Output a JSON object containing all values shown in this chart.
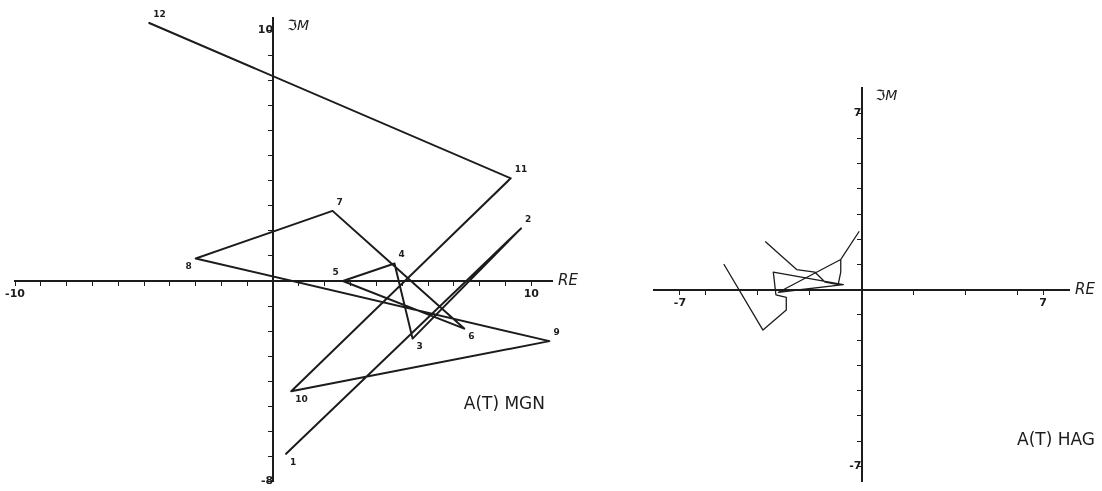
{
  "chart_data": [
    {
      "type": "line",
      "title": "A(T) MGN",
      "xlabel": "RE",
      "ylabel": "ℑM",
      "marker": "none",
      "line_style": "solid",
      "grid": false,
      "legend": false,
      "xlim": [
        -10,
        10.8
      ],
      "ylim": [
        -8,
        10.5
      ],
      "xticks": [
        -10,
        {
          "value": -9,
          "label": null
        },
        {
          "value": -8,
          "label": null
        },
        {
          "value": -7,
          "label": null
        },
        {
          "value": -6,
          "label": null
        },
        {
          "value": -5,
          "label": null
        },
        {
          "value": -4,
          "label": null
        },
        {
          "value": -3,
          "label": null
        },
        {
          "value": -2,
          "label": null
        },
        {
          "value": -1,
          "label": null
        },
        {
          "value": 1,
          "label": null
        },
        {
          "value": 2,
          "label": null
        },
        {
          "value": 3,
          "label": null
        },
        {
          "value": 4,
          "label": null
        },
        {
          "value": 5,
          "label": null
        },
        {
          "value": 6,
          "label": null
        },
        {
          "value": 7,
          "label": null
        },
        {
          "value": 8,
          "label": null
        },
        {
          "value": 9,
          "label": null
        },
        10
      ],
      "yticks": [
        -8,
        {
          "value": -7,
          "label": null
        },
        {
          "value": -6,
          "label": null
        },
        {
          "value": -5,
          "label": null
        },
        {
          "value": -4,
          "label": null
        },
        {
          "value": -3,
          "label": null
        },
        {
          "value": -2,
          "label": null
        },
        {
          "value": -1,
          "label": null
        },
        {
          "value": 1,
          "label": null
        },
        {
          "value": 2,
          "label": null
        },
        {
          "value": 3,
          "label": null
        },
        {
          "value": 4,
          "label": null
        },
        {
          "value": 5,
          "label": null
        },
        {
          "value": 6,
          "label": null
        },
        {
          "value": 7,
          "label": null
        },
        {
          "value": 8,
          "label": null
        },
        {
          "value": 9,
          "label": null
        },
        10
      ],
      "series": [
        {
          "color": "#1c1c1c",
          "x": [
            0.5,
            9.6,
            5.4,
            4.7,
            2.7,
            7.4,
            2.3,
            -3.0,
            10.7,
            0.7,
            9.2,
            -4.8
          ],
          "values": [
            -6.9,
            2.1,
            -2.3,
            0.7,
            0.0,
            -1.9,
            2.8,
            0.9,
            -2.4,
            -4.4,
            4.1,
            10.3
          ]
        }
      ],
      "annotations": [
        {
          "text": "1",
          "x": 0.5,
          "y": -6.9
        },
        {
          "text": "2",
          "x": 9.6,
          "y": 2.1
        },
        {
          "text": "3",
          "x": 5.4,
          "y": -2.3
        },
        {
          "text": "4",
          "x": 4.7,
          "y": 0.7
        },
        {
          "text": "5",
          "x": 2.7,
          "y": 0.0
        },
        {
          "text": "6",
          "x": 7.4,
          "y": -1.9
        },
        {
          "text": "7",
          "x": 2.3,
          "y": 2.8
        },
        {
          "text": "8",
          "x": -3.0,
          "y": 0.9
        },
        {
          "text": "9",
          "x": 10.7,
          "y": -2.4
        },
        {
          "text": "10",
          "x": 0.7,
          "y": -4.4
        },
        {
          "text": "11",
          "x": 9.2,
          "y": 4.1
        },
        {
          "text": "12",
          "x": -4.8,
          "y": 10.3
        }
      ]
    },
    {
      "type": "line",
      "title": "A(T) HAG",
      "xlabel": "RE",
      "ylabel": "ℑM",
      "marker": "none",
      "line_style": "solid",
      "grid": false,
      "legend": false,
      "xlim": [
        -8,
        8
      ],
      "ylim": [
        -7.6,
        8
      ],
      "xticks": [
        -7,
        {
          "value": -6,
          "label": null
        },
        {
          "value": -4,
          "label": null
        },
        {
          "value": -2,
          "label": null
        },
        {
          "value": 2,
          "label": null
        },
        {
          "value": 4,
          "label": null
        },
        {
          "value": 6,
          "label": null
        },
        7
      ],
      "yticks": [
        -7,
        {
          "value": -6,
          "label": null
        },
        {
          "value": -5,
          "label": null
        },
        {
          "value": -4,
          "label": null
        },
        {
          "value": -3,
          "label": null
        },
        {
          "value": -2,
          "label": null
        },
        {
          "value": -1,
          "label": null
        },
        {
          "value": 1,
          "label": null
        },
        {
          "value": 2,
          "label": null
        },
        {
          "value": 3,
          "label": null
        },
        {
          "value": 4,
          "label": null
        },
        {
          "value": 5,
          "label": null
        },
        {
          "value": 6,
          "label": null
        },
        7
      ],
      "series": [
        {
          "color": "#1c1c1c",
          "x": [
            -5.3,
            -3.8,
            -2.9,
            -2.9,
            -3.3,
            -3.4,
            -0.7,
            -3.2,
            -0.8,
            -0.1,
            null,
            -3.7,
            -2.5,
            -1.8,
            -1.4,
            -0.9,
            -0.8,
            -0.8
          ],
          "values": [
            1.0,
            -1.6,
            -0.8,
            -0.3,
            -0.2,
            0.7,
            0.2,
            -0.1,
            1.2,
            2.3,
            null,
            1.9,
            0.8,
            0.7,
            0.3,
            0.2,
            0.7,
            1.2
          ]
        }
      ]
    }
  ]
}
